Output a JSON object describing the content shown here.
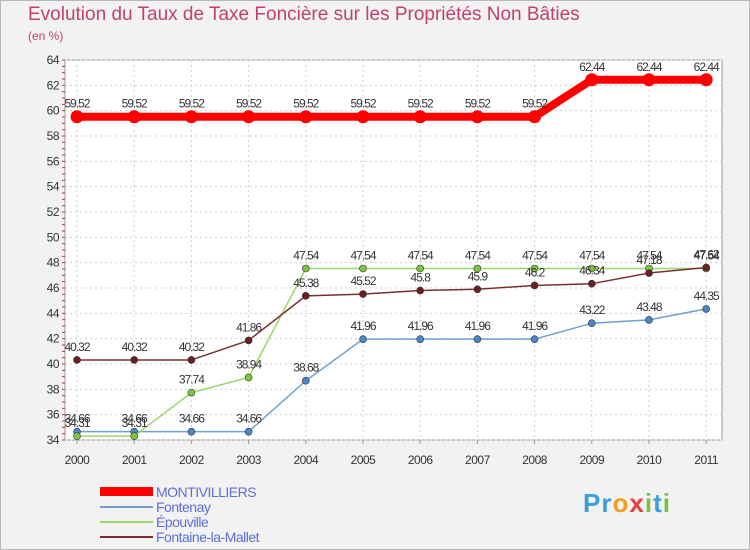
{
  "title": "Evolution du Taux de Taxe Foncière sur les Propriétés Non Bâties",
  "unit_label": "(en %)",
  "logo_text": "Proxiti",
  "chart_data": {
    "type": "line",
    "title": "Evolution du Taux de Taxe Foncière sur les Propriétés Non Bâties",
    "ylabel": "(en %)",
    "xlabel": "",
    "ylim": [
      34,
      64
    ],
    "yticks": [
      34,
      36,
      38,
      40,
      42,
      44,
      46,
      48,
      50,
      52,
      54,
      56,
      58,
      60,
      62,
      64
    ],
    "grid": true,
    "legend_position": "bottom-left",
    "x": [
      "2000",
      "2001",
      "2002",
      "2003",
      "2004",
      "2005",
      "2006",
      "2007",
      "2008",
      "2009",
      "2010",
      "2011"
    ],
    "series": [
      {
        "name": "Fontenay",
        "color": "#6fa0d0",
        "marker_color": "#4a86c8",
        "values": [
          34.66,
          34.66,
          34.66,
          34.66,
          38.68,
          41.96,
          41.96,
          41.96,
          41.96,
          43.22,
          43.48,
          44.35
        ],
        "labels": [
          "34.66",
          "34.66",
          "34.66",
          "34.66",
          "38.68",
          "41.96",
          "41.96",
          "41.96",
          "41.96",
          "43.22",
          "43.48",
          "44.35"
        ]
      },
      {
        "name": "Épouville",
        "color": "#9ad86a",
        "marker_color": "#7cc63c",
        "values": [
          34.31,
          34.31,
          37.74,
          38.94,
          47.54,
          47.54,
          47.54,
          47.54,
          47.54,
          47.54,
          47.54,
          47.54
        ],
        "labels": [
          "34.31",
          "34.31",
          "37.74",
          "38.94",
          "47.54",
          "47.54",
          "47.54",
          "47.54",
          "47.54",
          "47.54",
          "47.54",
          "47.54"
        ]
      },
      {
        "name": "Fontaine-la-Mallet",
        "color": "#7a3030",
        "marker_color": "#6a2020",
        "values": [
          40.32,
          40.32,
          40.32,
          41.86,
          45.38,
          45.52,
          45.8,
          45.9,
          46.2,
          46.34,
          47.18,
          47.62
        ],
        "labels": [
          "40.32",
          "40.32",
          "40.32",
          "41.86",
          "45.38",
          "45.52",
          "45.8",
          "45.9",
          "46.2",
          "46.34",
          "47.18",
          "47.62"
        ]
      },
      {
        "name": "MONTIVILLIERS",
        "color": "#ff0000",
        "marker_color": "#ff0000",
        "values": [
          59.52,
          59.52,
          59.52,
          59.52,
          59.52,
          59.52,
          59.52,
          59.52,
          59.52,
          62.44,
          62.44,
          62.44
        ],
        "labels": [
          "59.52",
          "59.52",
          "59.52",
          "59.52",
          "59.52",
          "59.52",
          "59.52",
          "59.52",
          "59.52",
          "62.44",
          "62.44",
          "62.44"
        ]
      }
    ],
    "legend": [
      {
        "name": "MONTIVILLIERS",
        "color": "#ff0000"
      },
      {
        "name": "Fontenay",
        "color": "#6fa0d0"
      },
      {
        "name": "Épouville",
        "color": "#9ad86a"
      },
      {
        "name": "Fontaine-la-Mallet",
        "color": "#7a3030"
      }
    ]
  }
}
